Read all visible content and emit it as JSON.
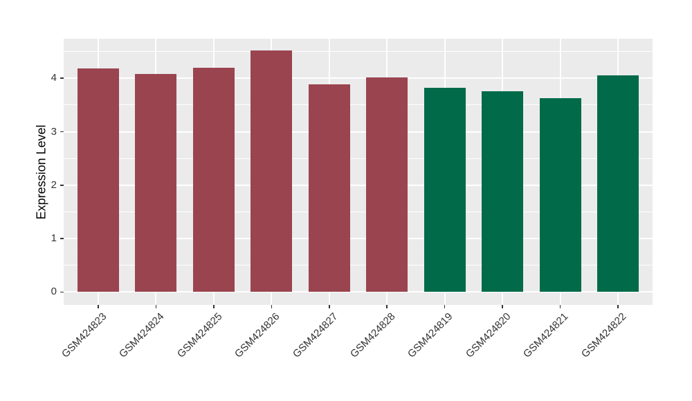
{
  "chart_data": {
    "type": "bar",
    "title": "",
    "xlabel": "",
    "ylabel": "Expression Level",
    "categories": [
      "GSM424823",
      "GSM424824",
      "GSM424825",
      "GSM424826",
      "GSM424827",
      "GSM424828",
      "GSM424819",
      "GSM424820",
      "GSM424821",
      "GSM424822"
    ],
    "values": [
      4.19,
      4.08,
      4.2,
      4.52,
      3.88,
      4.02,
      3.82,
      3.76,
      3.63,
      4.05
    ],
    "bar_colors": [
      "#9A4450",
      "#9A4450",
      "#9A4450",
      "#9A4450",
      "#9A4450",
      "#9A4450",
      "#006A49",
      "#006A49",
      "#006A49",
      "#006A49"
    ],
    "color_groups": [
      {
        "color": "#9A4450",
        "categories": [
          "GSM424823",
          "GSM424824",
          "GSM424825",
          "GSM424826",
          "GSM424827",
          "GSM424828"
        ]
      },
      {
        "color": "#006A49",
        "categories": [
          "GSM424819",
          "GSM424820",
          "GSM424821",
          "GSM424822"
        ]
      }
    ],
    "yticks": [
      0,
      1,
      2,
      3,
      4
    ],
    "yticks_minor": [
      0.5,
      1.5,
      2.5,
      3.5,
      4.5
    ],
    "y_range": [
      -0.24,
      4.74
    ],
    "ylim": [
      0,
      4.74
    ],
    "grid": true,
    "legend_position": "none",
    "x_label_angle_deg": 45,
    "bar_width_fraction": 0.72,
    "panel_bg": "#EBEBEB",
    "grid_color": "#FFFFFF",
    "axis_text_color": "#333333",
    "tick_color": "#333333"
  }
}
